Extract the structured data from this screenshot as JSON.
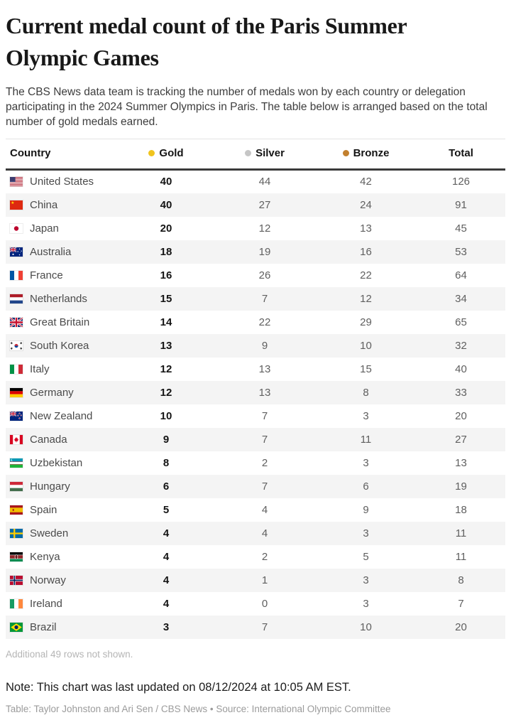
{
  "header": {
    "title": "Current medal count of the Paris Summer Olympic Games",
    "subtitle": "The CBS News data team is tracking the number of medals won by each country or delegation participating in the 2024 Summer Olympics in Paris. The table below is arranged based on the total number of gold medals earned."
  },
  "table": {
    "columns": [
      {
        "label": "Country",
        "key": "country"
      },
      {
        "label": "Gold",
        "key": "gold",
        "dot_color": "#F0C41E",
        "dot_icon": "gold-dot-icon"
      },
      {
        "label": "Silver",
        "key": "silver",
        "dot_color": "#C6C6C6",
        "dot_icon": "silver-dot-icon"
      },
      {
        "label": "Bronze",
        "key": "bronze",
        "dot_color": "#C2802E",
        "dot_icon": "bronze-dot-icon"
      },
      {
        "label": "Total",
        "key": "total"
      }
    ],
    "rows": [
      {
        "country": "United States",
        "flag": "us",
        "gold": "40",
        "silver": "44",
        "bronze": "42",
        "total": "126"
      },
      {
        "country": "China",
        "flag": "cn",
        "gold": "40",
        "silver": "27",
        "bronze": "24",
        "total": "91"
      },
      {
        "country": "Japan",
        "flag": "jp",
        "gold": "20",
        "silver": "12",
        "bronze": "13",
        "total": "45"
      },
      {
        "country": "Australia",
        "flag": "au",
        "gold": "18",
        "silver": "19",
        "bronze": "16",
        "total": "53"
      },
      {
        "country": "France",
        "flag": "fr",
        "gold": "16",
        "silver": "26",
        "bronze": "22",
        "total": "64"
      },
      {
        "country": "Netherlands",
        "flag": "nl",
        "gold": "15",
        "silver": "7",
        "bronze": "12",
        "total": "34"
      },
      {
        "country": "Great Britain",
        "flag": "gb",
        "gold": "14",
        "silver": "22",
        "bronze": "29",
        "total": "65"
      },
      {
        "country": "South Korea",
        "flag": "kr",
        "gold": "13",
        "silver": "9",
        "bronze": "10",
        "total": "32"
      },
      {
        "country": "Italy",
        "flag": "it",
        "gold": "12",
        "silver": "13",
        "bronze": "15",
        "total": "40"
      },
      {
        "country": "Germany",
        "flag": "de",
        "gold": "12",
        "silver": "13",
        "bronze": "8",
        "total": "33"
      },
      {
        "country": "New Zealand",
        "flag": "nz",
        "gold": "10",
        "silver": "7",
        "bronze": "3",
        "total": "20"
      },
      {
        "country": "Canada",
        "flag": "ca",
        "gold": "9",
        "silver": "7",
        "bronze": "11",
        "total": "27"
      },
      {
        "country": "Uzbekistan",
        "flag": "uz",
        "gold": "8",
        "silver": "2",
        "bronze": "3",
        "total": "13"
      },
      {
        "country": "Hungary",
        "flag": "hu",
        "gold": "6",
        "silver": "7",
        "bronze": "6",
        "total": "19"
      },
      {
        "country": "Spain",
        "flag": "es",
        "gold": "5",
        "silver": "4",
        "bronze": "9",
        "total": "18"
      },
      {
        "country": "Sweden",
        "flag": "se",
        "gold": "4",
        "silver": "4",
        "bronze": "3",
        "total": "11"
      },
      {
        "country": "Kenya",
        "flag": "ke",
        "gold": "4",
        "silver": "2",
        "bronze": "5",
        "total": "11"
      },
      {
        "country": "Norway",
        "flag": "no",
        "gold": "4",
        "silver": "1",
        "bronze": "3",
        "total": "8"
      },
      {
        "country": "Ireland",
        "flag": "ie",
        "gold": "4",
        "silver": "0",
        "bronze": "3",
        "total": "7"
      },
      {
        "country": "Brazil",
        "flag": "br",
        "gold": "3",
        "silver": "7",
        "bronze": "10",
        "total": "20"
      }
    ],
    "footnote": "Additional 49 rows not shown."
  },
  "footer": {
    "note": "Note: This chart was last updated on 08/12/2024 at 10:05 AM EST.",
    "credit": "Table: Taylor Johnston and Ari Sen / CBS News • Source: International Olympic Committee"
  },
  "chart_data": {
    "type": "table",
    "title": "Current medal count of the Paris Summer Olympic Games",
    "columns": [
      "Country",
      "Gold",
      "Silver",
      "Bronze",
      "Total"
    ],
    "rows": [
      [
        "United States",
        40,
        44,
        42,
        126
      ],
      [
        "China",
        40,
        27,
        24,
        91
      ],
      [
        "Japan",
        20,
        12,
        13,
        45
      ],
      [
        "Australia",
        18,
        19,
        16,
        53
      ],
      [
        "France",
        16,
        26,
        22,
        64
      ],
      [
        "Netherlands",
        15,
        7,
        12,
        34
      ],
      [
        "Great Britain",
        14,
        22,
        29,
        65
      ],
      [
        "South Korea",
        13,
        9,
        10,
        32
      ],
      [
        "Italy",
        12,
        13,
        15,
        40
      ],
      [
        "Germany",
        12,
        13,
        8,
        33
      ],
      [
        "New Zealand",
        10,
        7,
        3,
        20
      ],
      [
        "Canada",
        9,
        7,
        11,
        27
      ],
      [
        "Uzbekistan",
        8,
        2,
        3,
        13
      ],
      [
        "Hungary",
        6,
        7,
        6,
        19
      ],
      [
        "Spain",
        5,
        4,
        9,
        18
      ],
      [
        "Sweden",
        4,
        4,
        3,
        11
      ],
      [
        "Kenya",
        4,
        2,
        5,
        11
      ],
      [
        "Norway",
        4,
        1,
        3,
        8
      ],
      [
        "Ireland",
        4,
        0,
        3,
        7
      ],
      [
        "Brazil",
        3,
        7,
        10,
        20
      ]
    ],
    "legend": [
      {
        "label": "Gold",
        "color": "#F0C41E"
      },
      {
        "label": "Silver",
        "color": "#C6C6C6"
      },
      {
        "label": "Bronze",
        "color": "#C2802E"
      }
    ],
    "note": "Additional 49 rows not shown."
  }
}
